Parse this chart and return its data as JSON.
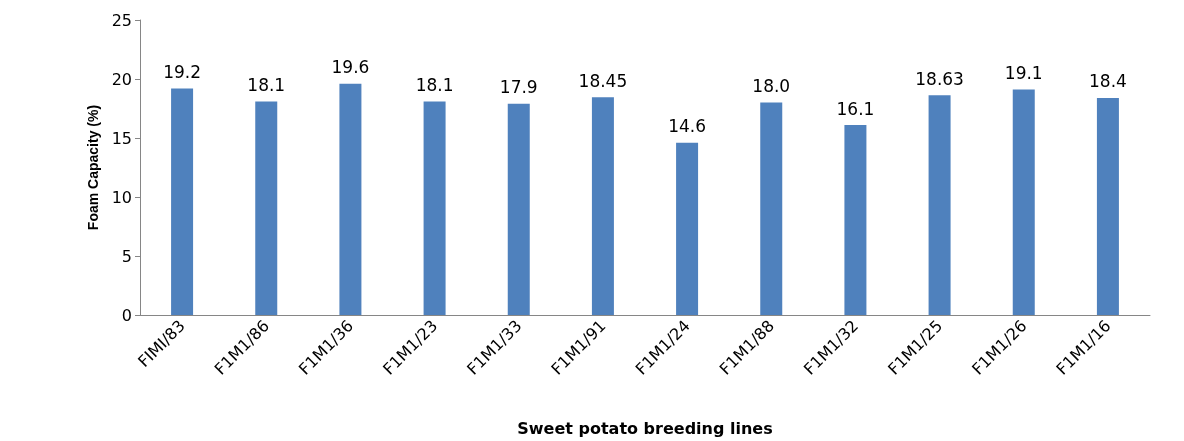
{
  "chart_data": {
    "type": "bar",
    "xlabel": "Sweet potato breeding lines",
    "ylabel": "Foam Capacity (%)",
    "categories": [
      "FIMI/83",
      "F1M1/86",
      "F1M1/36",
      "F1M1/23",
      "F1M1/33",
      "F1M1/91",
      "F1M1/24",
      "F1M1/88",
      "F1M1/32",
      "F1M1/25",
      "F1M1/26",
      "F1M1/16"
    ],
    "values": [
      19.2,
      18.1,
      19.6,
      18.1,
      17.9,
      18.45,
      14.6,
      18.0,
      16.1,
      18.63,
      19.1,
      18.4
    ],
    "value_labels": [
      "19.2",
      "18.1",
      "19.6",
      "18.1",
      "17.9",
      "18.45",
      "14.6",
      "18.0",
      "16.1",
      "18.63",
      "19.1",
      "18.4"
    ],
    "color": "#4f81bd",
    "ylim": [
      0,
      25
    ],
    "yticks": [
      0,
      5,
      10,
      15,
      20,
      25
    ],
    "grid": false
  }
}
